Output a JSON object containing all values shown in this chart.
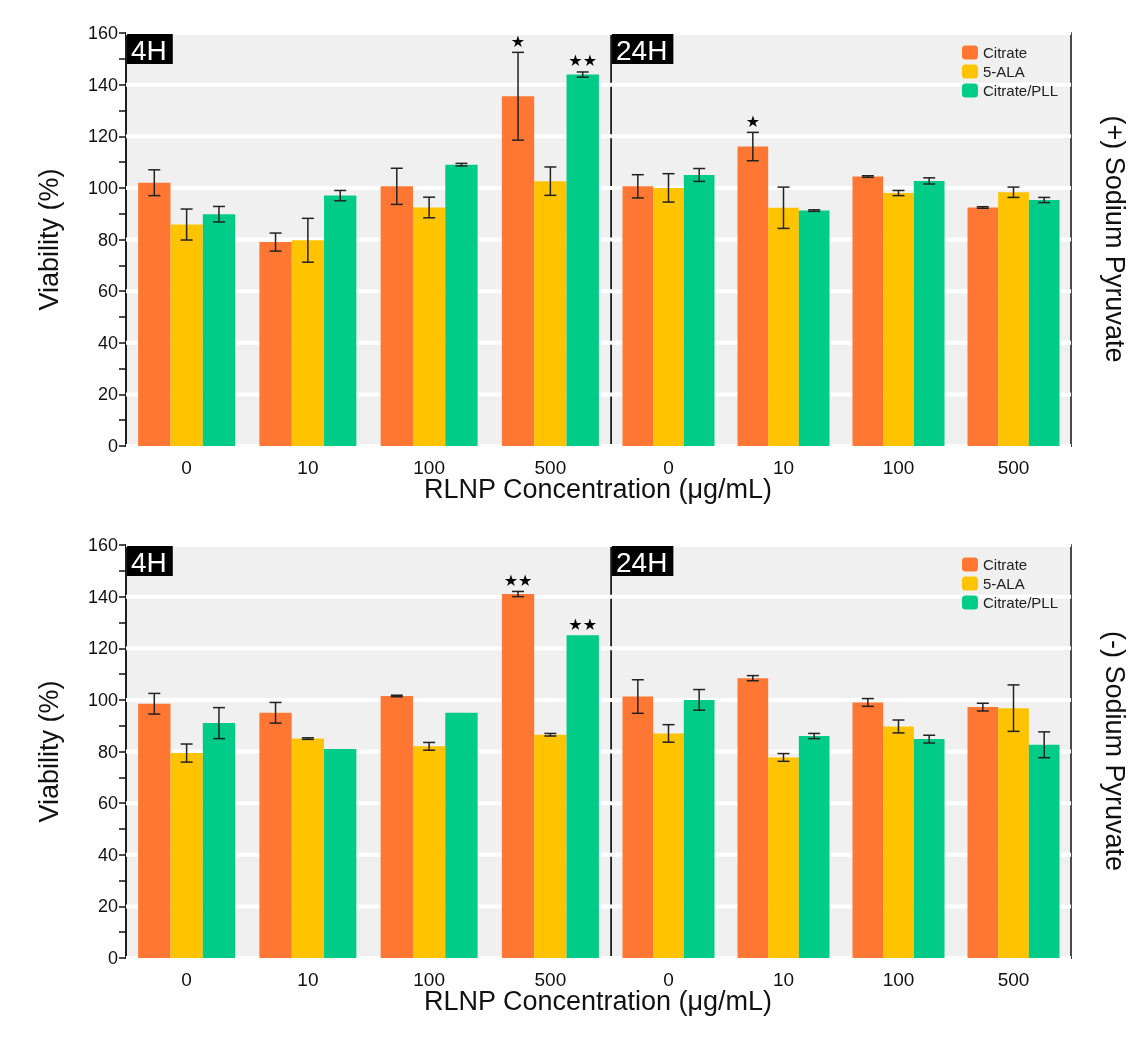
{
  "chart_data": [
    {
      "type": "bar",
      "title": "4H",
      "xlabel": "RLNP Concentration (μg/mL)",
      "ylabel": "Viability (%)",
      "categories": [
        "0",
        "10",
        "100",
        "500"
      ],
      "ylim": [
        0,
        160
      ],
      "yticks": [
        0,
        {
          "value": 10,
          "label": null
        },
        20,
        {
          "value": 30,
          "label": null
        },
        40,
        {
          "value": 50,
          "label": null
        },
        60,
        {
          "value": 70,
          "label": null
        },
        80,
        {
          "value": 90,
          "label": null
        },
        100,
        {
          "value": 110,
          "label": null
        },
        120,
        {
          "value": 130,
          "label": null
        },
        140,
        {
          "value": 150,
          "label": null
        },
        160
      ],
      "grid": "y",
      "legend": false,
      "series": [
        {
          "color": "#ff7733",
          "values": [
            102,
            79,
            100.6,
            135.5
          ],
          "errors": [
            5,
            3.5,
            7,
            17
          ]
        },
        {
          "color": "#ffc300",
          "values": [
            85.8,
            79.7,
            92.4,
            102.6
          ],
          "errors": [
            6,
            8.5,
            4,
            5.5
          ]
        },
        {
          "color": "#00cc88",
          "values": [
            89.8,
            97,
            109,
            143.9
          ],
          "errors": [
            3,
            2,
            0.5,
            1
          ]
        }
      ],
      "annotations": [
        "★",
        "★★"
      ]
    },
    {
      "type": "bar",
      "title": "24H",
      "categories": [
        "0",
        "10",
        "100",
        "500"
      ],
      "ylim": [
        0,
        160
      ],
      "yticks": [
        0,
        20,
        40,
        60,
        80,
        100,
        120,
        140,
        160
      ],
      "grid": "y",
      "legend": "top right",
      "tick_labels": "x",
      "series": [
        {
          "name": "Citrate",
          "color": "#ff7733",
          "values": [
            100.6,
            116,
            104.4,
            92.4
          ],
          "errors": [
            4.5,
            5.5,
            0.3,
            0.3
          ]
        },
        {
          "name": "5-ALA",
          "color": "#ffc300",
          "values": [
            100,
            92.3,
            98,
            98.3
          ],
          "errors": [
            5.5,
            8,
            1,
            2
          ]
        },
        {
          "name": "Citrate/PLL",
          "color": "#00cc88",
          "values": [
            105,
            91.2,
            102.7,
            95.3
          ],
          "errors": [
            2.5,
            0.3,
            1.2,
            1
          ]
        }
      ],
      "annotations": [
        "(+) Sodium Pyruvate",
        "★"
      ]
    },
    {
      "type": "bar",
      "title": "4H",
      "xlabel": "RLNP Concentration (μg/mL)",
      "ylabel": "Viability (%)",
      "categories": [
        "0",
        "10",
        "100",
        "500"
      ],
      "ylim": [
        0,
        160
      ],
      "yticks": [
        0,
        {
          "value": 10,
          "label": null
        },
        20,
        {
          "value": 30,
          "label": null
        },
        40,
        {
          "value": 50,
          "label": null
        },
        60,
        {
          "value": 70,
          "label": null
        },
        80,
        {
          "value": 90,
          "label": null
        },
        100,
        {
          "value": 110,
          "label": null
        },
        120,
        {
          "value": 130,
          "label": null
        },
        140,
        {
          "value": 150,
          "label": null
        },
        160
      ],
      "grid": "y",
      "legend": false,
      "series": [
        {
          "color": "#ff7733",
          "values": [
            98.5,
            95,
            101.5,
            141
          ],
          "errors": [
            4,
            4,
            0.3,
            1
          ]
        },
        {
          "color": "#ffc300",
          "values": [
            79.4,
            85,
            82,
            86.5
          ],
          "errors": [
            3.5,
            0.3,
            1.5,
            0.5
          ]
        },
        {
          "color": "#00cc88",
          "values": [
            91,
            81,
            95,
            125
          ],
          "errors": [
            6,
            null,
            null,
            null
          ]
        }
      ],
      "annotations": [
        "★★",
        "★★"
      ]
    },
    {
      "type": "bar",
      "title": "24H",
      "categories": [
        "0",
        "10",
        "100",
        "500"
      ],
      "ylim": [
        0,
        160
      ],
      "yticks": [
        0,
        20,
        40,
        60,
        80,
        100,
        120,
        140,
        160
      ],
      "grid": "y",
      "legend": "top right",
      "tick_labels": "x",
      "series": [
        {
          "name": "Citrate",
          "color": "#ff7733",
          "values": [
            101.3,
            108.4,
            99,
            97.2
          ],
          "errors": [
            6.5,
            1,
            1.5,
            1.5
          ]
        },
        {
          "name": "5-ALA",
          "color": "#ffc300",
          "values": [
            87,
            77.7,
            89.7,
            96.8
          ],
          "errors": [
            3.4,
            1.5,
            2.5,
            9
          ]
        },
        {
          "name": "Citrate/PLL",
          "color": "#00cc88",
          "values": [
            100,
            86,
            84.8,
            82.6
          ],
          "errors": [
            4,
            1,
            1.5,
            5
          ]
        }
      ],
      "annotations": [
        "(-) Sodium Pyruvate"
      ]
    }
  ]
}
